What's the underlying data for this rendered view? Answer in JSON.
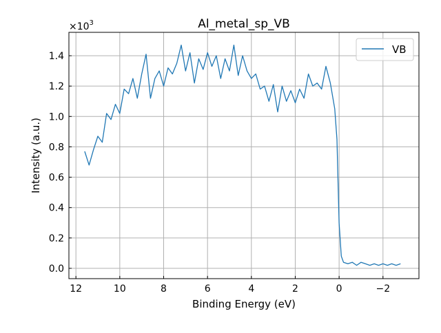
{
  "chart_data": {
    "type": "line",
    "title": "Al_metal_sp_VB",
    "xlabel": "Binding Energy (eV)",
    "ylabel": "Intensity (a.u.)",
    "y_multiplier": "×10",
    "y_multiplier_exp": "3",
    "xlim": [
      12.32,
      -3.64
    ],
    "ylim": [
      -0.068,
      1.554
    ],
    "x_ticks": [
      12,
      10,
      8,
      6,
      4,
      2,
      0,
      -2
    ],
    "x_tick_labels": [
      "12",
      "10",
      "8",
      "6",
      "4",
      "2",
      "0",
      "−2"
    ],
    "y_ticks": [
      0.0,
      0.2,
      0.4,
      0.6,
      0.8,
      1.0,
      1.2,
      1.4
    ],
    "y_tick_labels": [
      "0.0",
      "0.2",
      "0.4",
      "0.6",
      "0.8",
      "1.0",
      "1.2",
      "1.4"
    ],
    "grid": true,
    "legend": "top-right",
    "series": [
      {
        "name": "VB",
        "color": "#1f77b4",
        "x": [
          11.6,
          11.4,
          11.2,
          11.0,
          10.8,
          10.6,
          10.4,
          10.2,
          10.0,
          9.8,
          9.6,
          9.4,
          9.2,
          9.0,
          8.8,
          8.6,
          8.4,
          8.2,
          8.0,
          7.8,
          7.6,
          7.4,
          7.2,
          7.0,
          6.8,
          6.6,
          6.4,
          6.2,
          6.0,
          5.8,
          5.6,
          5.4,
          5.2,
          5.0,
          4.8,
          4.6,
          4.4,
          4.2,
          4.0,
          3.8,
          3.6,
          3.4,
          3.2,
          3.0,
          2.8,
          2.6,
          2.4,
          2.2,
          2.0,
          1.8,
          1.6,
          1.4,
          1.2,
          1.0,
          0.8,
          0.6,
          0.4,
          0.2,
          0.1,
          0.0,
          -0.1,
          -0.2,
          -0.4,
          -0.6,
          -0.8,
          -1.0,
          -1.2,
          -1.4,
          -1.6,
          -1.8,
          -2.0,
          -2.2,
          -2.4,
          -2.6,
          -2.8
        ],
        "y": [
          0.77,
          0.68,
          0.78,
          0.87,
          0.83,
          1.02,
          0.98,
          1.08,
          1.02,
          1.18,
          1.15,
          1.25,
          1.12,
          1.28,
          1.41,
          1.12,
          1.25,
          1.3,
          1.2,
          1.32,
          1.28,
          1.35,
          1.47,
          1.3,
          1.42,
          1.22,
          1.38,
          1.31,
          1.42,
          1.33,
          1.4,
          1.25,
          1.38,
          1.3,
          1.47,
          1.27,
          1.4,
          1.3,
          1.25,
          1.28,
          1.18,
          1.2,
          1.1,
          1.21,
          1.03,
          1.2,
          1.1,
          1.17,
          1.09,
          1.18,
          1.12,
          1.28,
          1.2,
          1.22,
          1.18,
          1.33,
          1.22,
          1.05,
          0.85,
          0.3,
          0.08,
          0.04,
          0.03,
          0.04,
          0.02,
          0.04,
          0.03,
          0.02,
          0.03,
          0.02,
          0.03,
          0.02,
          0.03,
          0.02,
          0.03
        ]
      }
    ]
  }
}
